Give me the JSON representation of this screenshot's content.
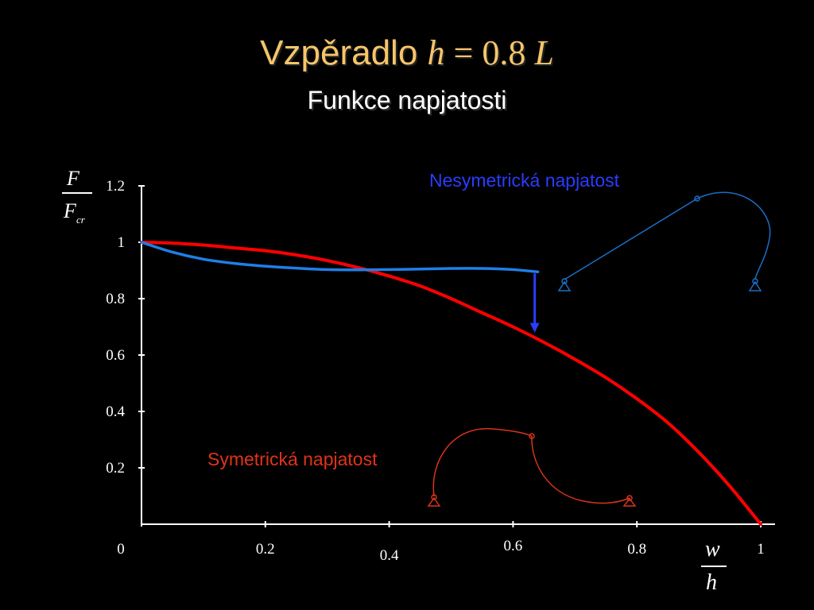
{
  "header": {
    "title_word": "Vzpěradlo",
    "title_h": "h",
    "title_eq": " = 0.8 ",
    "title_L": "L",
    "subtitle": "Funkce napjatosti"
  },
  "colors": {
    "title": "#f5c56a",
    "symmetric": "#ff0000",
    "asymmetric": "#1f7fe6",
    "arrow": "#2a3cff",
    "asym_label": "#2a3cff",
    "sym_label": "#e0331a",
    "sketch_asym": "#1a6fc4",
    "sketch_sym": "#d9331a"
  },
  "annotations": {
    "asymmetric": "Nesymetrická napjatost",
    "symmetric": "Symetrická napjatost"
  },
  "chart_data": {
    "type": "line",
    "title": "Vzpěradlo h = 0.8 L",
    "subtitle": "Funkce napjatosti",
    "xlabel": {
      "numerator": "w",
      "denominator": "h"
    },
    "ylabel": {
      "numerator": "F",
      "denominator": "F",
      "denominator_sub": "cr"
    },
    "xlim": [
      0,
      1
    ],
    "ylim": [
      0,
      1.2
    ],
    "x_ticks": [
      "0",
      "0.2",
      "0.4",
      "0.6",
      "0.8",
      "1"
    ],
    "y_ticks": [
      "0.2",
      "0.4",
      "0.6",
      "0.8",
      "1",
      "1.2"
    ],
    "grid": false,
    "series": [
      {
        "name": "Symetrická napjatost",
        "color": "#ff0000",
        "x": [
          0,
          0.05,
          0.1,
          0.15,
          0.2,
          0.25,
          0.3,
          0.35,
          0.4,
          0.45,
          0.5,
          0.55,
          0.6,
          0.65,
          0.7,
          0.75,
          0.8,
          0.85,
          0.9,
          0.95,
          1.0
        ],
        "y": [
          1.0,
          0.997,
          0.99,
          0.98,
          0.97,
          0.955,
          0.935,
          0.91,
          0.88,
          0.845,
          0.8,
          0.75,
          0.7,
          0.645,
          0.585,
          0.52,
          0.445,
          0.36,
          0.255,
          0.135,
          0.0
        ]
      },
      {
        "name": "Nesymetrická napjatost",
        "color": "#1f7fe6",
        "x": [
          0,
          0.05,
          0.1,
          0.15,
          0.2,
          0.25,
          0.3,
          0.35,
          0.4,
          0.45,
          0.5,
          0.55,
          0.6,
          0.64
        ],
        "y": [
          1.0,
          0.965,
          0.94,
          0.925,
          0.915,
          0.908,
          0.903,
          0.902,
          0.903,
          0.905,
          0.907,
          0.907,
          0.903,
          0.895
        ]
      }
    ],
    "arrow": {
      "x": 0.635,
      "y_from": 0.895,
      "y_to": 0.68
    }
  }
}
